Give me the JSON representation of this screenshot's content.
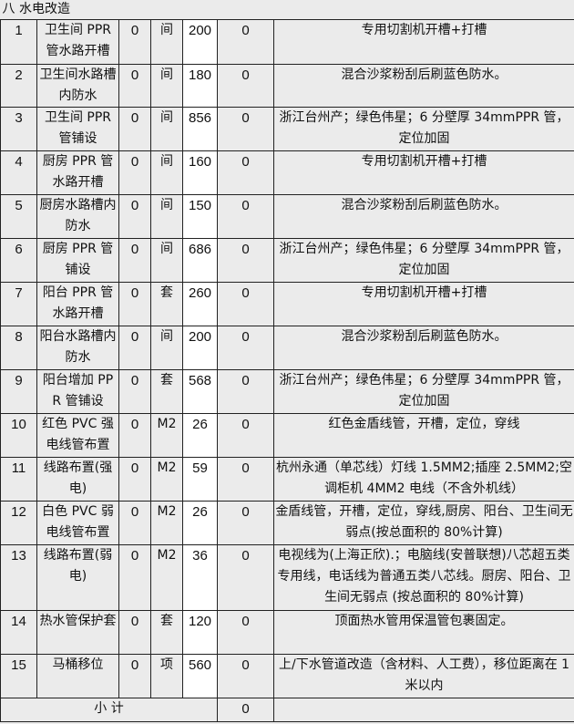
{
  "section_title": "八  水电改造",
  "rows": [
    {
      "no": "1",
      "name": "卫生间 PPR 管水路开槽",
      "qty": "0",
      "unit": "间",
      "price": "200",
      "total": "0",
      "desc": "专用切割机开槽+打槽"
    },
    {
      "no": "2",
      "name": "卫生间水路槽内防水",
      "qty": "0",
      "unit": "间",
      "price": "180",
      "total": "0",
      "desc": "混合沙浆粉刮后刷蓝色防水。"
    },
    {
      "no": "3",
      "name": "卫生间 PPR 管铺设",
      "qty": "0",
      "unit": "间",
      "price": "856",
      "total": "0",
      "desc": "浙江台州产；绿色伟星；6 分壁厚 34mmPPR 管，定位加固"
    },
    {
      "no": "4",
      "name": "厨房 PPR 管水路开槽",
      "qty": "0",
      "unit": "间",
      "price": "160",
      "total": "0",
      "desc": "专用切割机开槽+打槽"
    },
    {
      "no": "5",
      "name": "厨房水路槽内防水",
      "qty": "0",
      "unit": "间",
      "price": "150",
      "total": "0",
      "desc": "混合沙浆粉刮后刷蓝色防水。"
    },
    {
      "no": "6",
      "name": "厨房 PPR 管铺设",
      "qty": "0",
      "unit": "间",
      "price": "686",
      "total": "0",
      "desc": "浙江台州产；绿色伟星；6 分壁厚 34mmPPR 管，定位加固"
    },
    {
      "no": "7",
      "name": "阳台 PPR 管水路开槽",
      "qty": "0",
      "unit": "套",
      "price": "260",
      "total": "0",
      "desc": "专用切割机开槽+打槽"
    },
    {
      "no": "8",
      "name": "阳台水路槽内防水",
      "qty": "0",
      "unit": "间",
      "price": "200",
      "total": "0",
      "desc": "混合沙浆粉刮后刷蓝色防水。"
    },
    {
      "no": "9",
      "name": "阳台增加 PPR 管铺设",
      "qty": "0",
      "unit": "套",
      "price": "568",
      "total": "0",
      "desc": "浙江台州产；绿色伟星；6 分壁厚 34mmPPR 管，定位加固"
    },
    {
      "no": "10",
      "name": "红色 PVC 强电线管布置",
      "qty": "0",
      "unit": "M2",
      "price": "26",
      "total": "0",
      "desc": "红色金盾线管，开槽，定位，穿线"
    },
    {
      "no": "11",
      "name": "线路布置(强电)",
      "qty": "0",
      "unit": "M2",
      "price": "59",
      "total": "0",
      "desc": "杭州永通（单芯线）灯线 1.5MM2;插座 2.5MM2;空调柜机 4MM2 电线（不含外机线）"
    },
    {
      "no": "12",
      "name": "白色 PVC 弱电线管布置",
      "qty": "0",
      "unit": "M2",
      "price": "26",
      "total": "0",
      "desc": "金盾线管，开槽，定位，穿线,厨房、阳台、卫生间无弱点(按总面积的 80%计算)"
    },
    {
      "no": "13",
      "name": "线路布置(弱电)",
      "qty": "0",
      "unit": "M2",
      "price": "36",
      "total": "0",
      "desc": "电视线为(上海正欣).；电脑线(安普联想)八芯超五类专用线，电话线为普通五类八芯线。厨房、阳台、卫生间无弱点 (按总面积的 80%计算)"
    },
    {
      "no": "14",
      "name": "热水管保护套",
      "qty": "0",
      "unit": "套",
      "price": "120",
      "total": "0",
      "desc": "顶面热水管用保温管包裹固定。"
    },
    {
      "no": "15",
      "name": "马桶移位",
      "qty": "0",
      "unit": "项",
      "price": "560",
      "total": "0",
      "desc": "上/下水管道改造（含材料、人工费），移位距离在 1 米以内"
    }
  ],
  "subtotal": {
    "label": "小 计",
    "total": "0"
  }
}
